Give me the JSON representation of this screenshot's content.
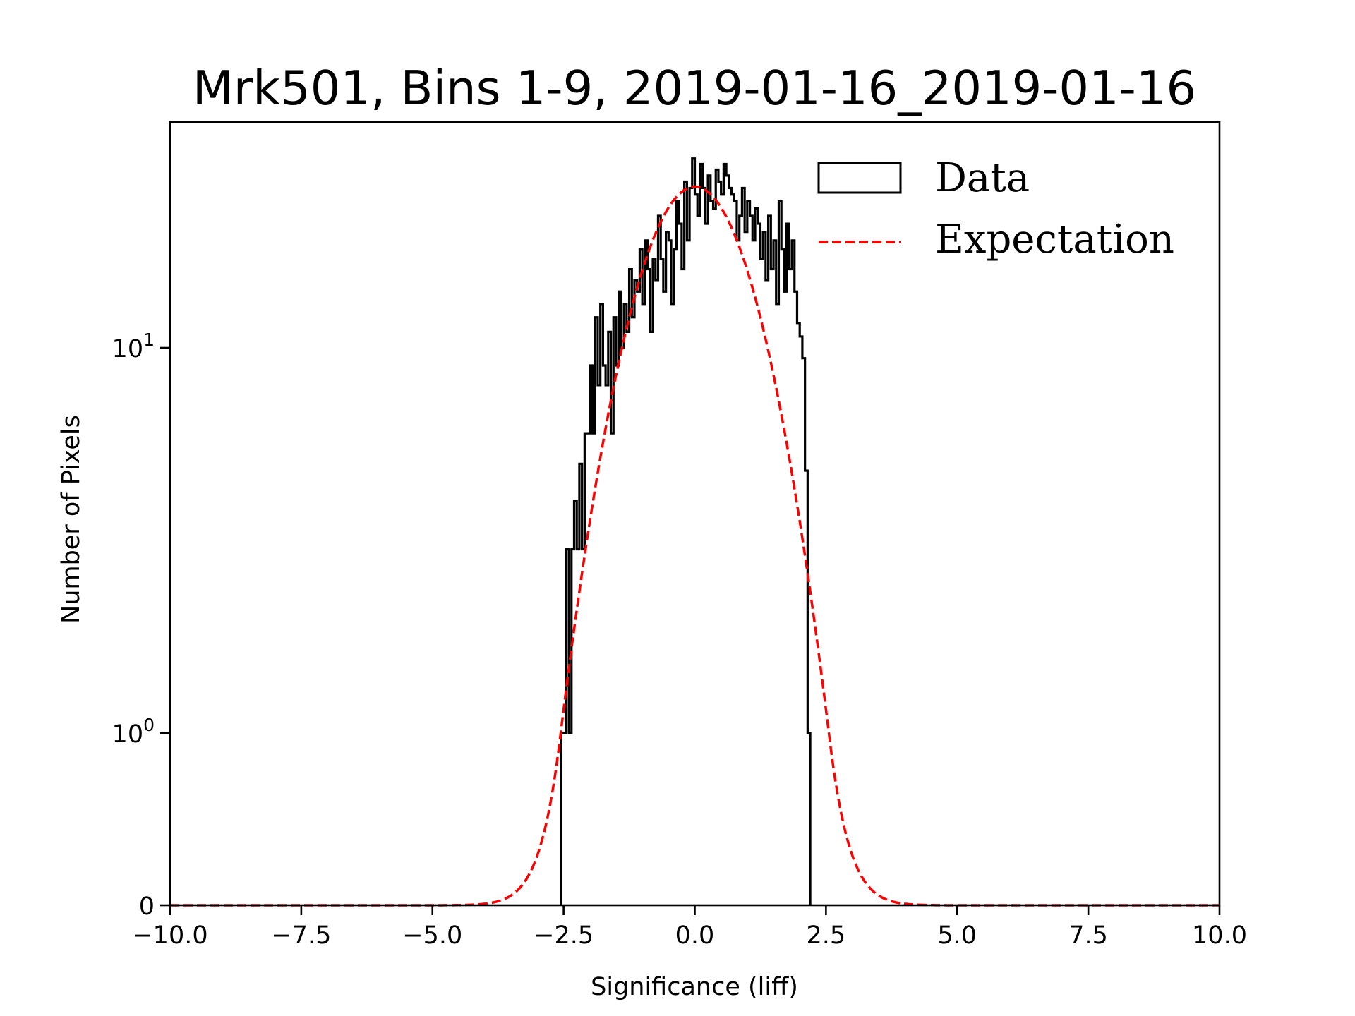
{
  "chart_data": {
    "type": "bar",
    "subtype": "step-histogram",
    "title": "Mrk501, Bins 1-9, 2019-01-16_2019-01-16",
    "xlabel": "Significance (liff)",
    "ylabel": "Number of Pixels",
    "xlim": [
      -10.0,
      10.0
    ],
    "ylim": [
      0,
      38.5
    ],
    "yscale": "symlog",
    "linthresh": 1,
    "grid": false,
    "xticks": [
      {
        "value": -10.0,
        "label": "−10.0"
      },
      {
        "value": -7.5,
        "label": "−7.5"
      },
      {
        "value": -5.0,
        "label": "−5.0"
      },
      {
        "value": -2.5,
        "label": "−2.5"
      },
      {
        "value": 0.0,
        "label": "0.0"
      },
      {
        "value": 2.5,
        "label": "2.5"
      },
      {
        "value": 5.0,
        "label": "5.0"
      },
      {
        "value": 7.5,
        "label": "7.5"
      },
      {
        "value": 10.0,
        "label": "10.0"
      }
    ],
    "yticks": [
      {
        "value": 0,
        "base": "0",
        "exp": ""
      },
      {
        "value": 1,
        "base": "10",
        "exp": "0"
      },
      {
        "value": 10,
        "base": "10",
        "exp": "1"
      }
    ],
    "legend": {
      "placement": "top-right",
      "entries": [
        {
          "label": "Data",
          "style": "box",
          "color": "#000000"
        },
        {
          "label": "Expectation",
          "style": "dashed",
          "color": "#ff0000"
        }
      ]
    },
    "series": [
      {
        "name": "Data",
        "kind": "histogram",
        "color": "#000000",
        "bin_start": -2.55,
        "bin_width": 0.05,
        "counts": [
          1,
          1,
          3,
          1,
          3,
          4,
          3,
          5,
          3,
          6,
          6,
          9,
          6,
          12,
          8,
          13,
          9,
          8,
          11,
          6,
          12,
          9,
          14,
          10,
          13,
          11,
          16,
          12,
          15,
          14,
          18,
          13,
          19,
          16,
          11,
          17,
          15,
          22,
          17,
          14,
          20,
          19,
          13,
          18,
          24,
          21,
          16,
          27,
          19,
          26,
          31,
          25,
          22,
          30,
          26,
          21,
          28,
          24,
          23,
          29,
          27,
          25,
          30,
          28,
          26,
          25,
          24,
          19,
          22,
          26,
          20,
          24,
          22,
          19,
          23,
          21,
          17,
          20,
          15,
          22,
          16,
          19,
          13,
          24,
          18,
          14,
          21,
          16,
          19,
          14,
          11.6,
          10.7,
          9.4,
          4.8,
          1
        ]
      },
      {
        "name": "Expectation",
        "kind": "gaussian",
        "color": "#ff0000",
        "amplitude": 26.2,
        "mean": 0.0,
        "sigma": 1.0
      }
    ]
  }
}
